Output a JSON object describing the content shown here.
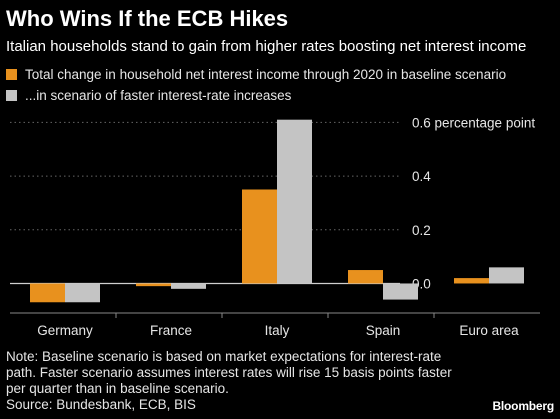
{
  "title": "Who Wins If the ECB Hikes",
  "subtitle": "Italian households stand to gain from higher rates boosting net interest income",
  "note_lines": [
    "Note: Baseline scenario is based on market expectations for interest-rate",
    "path. Faster scenario assumes interest rates will rise 15 basis points faster",
    "per quarter than in baseline scenario.",
    "Source: Bundesbank, ECB, BIS"
  ],
  "brand": "Bloomberg",
  "colors": {
    "background": "#000000",
    "baseline": "#e8911e",
    "faster": "#c4c4c4",
    "gridline": "#666666",
    "zero_line": "#cfcfcf"
  },
  "chart_data": {
    "type": "bar",
    "categories": [
      "Germany",
      "France",
      "Italy",
      "Spain",
      "Euro area"
    ],
    "series": [
      {
        "name": "Total change in household net interest income through 2020 in baseline scenario",
        "values": [
          -0.07,
          -0.01,
          0.35,
          0.05,
          0.02
        ]
      },
      {
        "name": "...in scenario of faster interest-rate increases",
        "values": [
          -0.07,
          -0.02,
          0.61,
          -0.06,
          0.06
        ]
      }
    ],
    "yticks": [
      0.0,
      0.2,
      0.4,
      0.6
    ],
    "ytick_labels": [
      "0.0",
      "0.2",
      "0.4",
      "0.6 percentage point"
    ],
    "ylim": [
      -0.11,
      0.62
    ],
    "xlabel": "",
    "ylabel": "",
    "grid": "horizontal-dotted",
    "legend_position": "top-left"
  }
}
